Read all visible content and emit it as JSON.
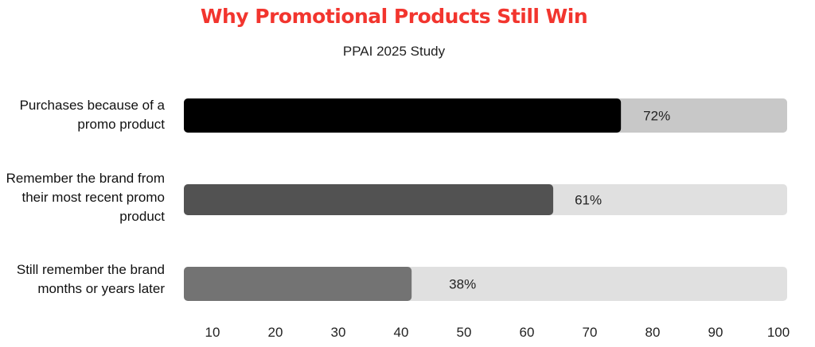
{
  "chart_data": {
    "type": "bar",
    "orientation": "horizontal",
    "title": "Why Promotional Products Still Win",
    "subtitle": "PPAI 2025 Study",
    "categories": [
      "Purchases because of a promo product",
      "Remember the brand from their most recent promo product",
      "Still remember the brand months or years later"
    ],
    "values": [
      72,
      61,
      38
    ],
    "value_labels": [
      "72%",
      "61%",
      "38%"
    ],
    "x_ticks": [
      "10",
      "20",
      "30",
      "40",
      "50",
      "60",
      "70",
      "80",
      "90",
      "100"
    ],
    "xlim": [
      0,
      100
    ],
    "grid": false,
    "colors": {
      "title": "#f2352e",
      "bars": [
        "#000000",
        "#525252",
        "#737373"
      ],
      "tracks": [
        "#c8c8c8",
        "#e0e0e0",
        "#e0e0e0"
      ]
    }
  }
}
